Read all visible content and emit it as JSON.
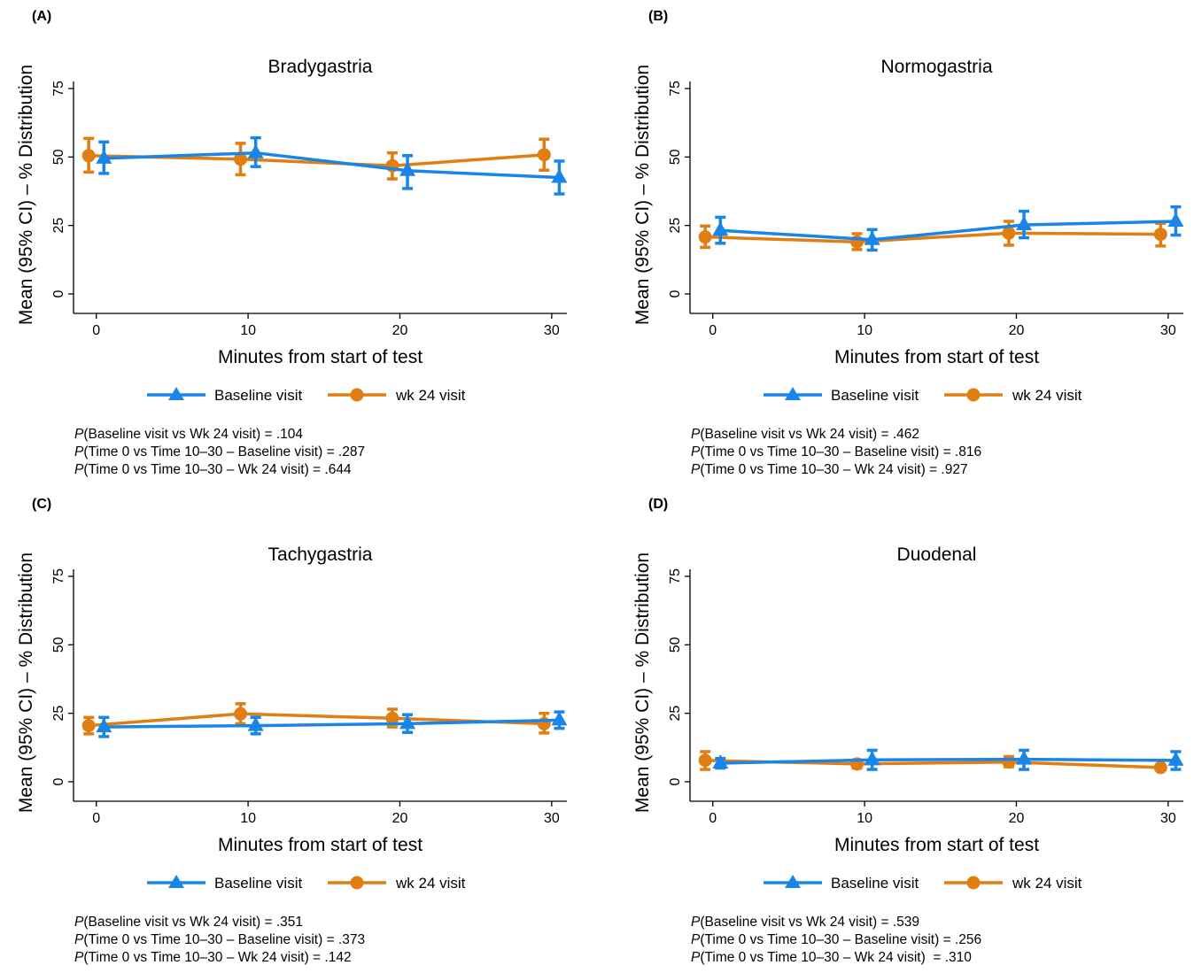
{
  "colors": {
    "baseline": "#1a85e8",
    "wk24": "#e07e12",
    "axis": "#000000"
  },
  "legend": {
    "baseline_label": "Baseline visit",
    "wk24_label": "wk 24 visit"
  },
  "chart_data": [
    {
      "type": "line",
      "panel_label": "(A)",
      "title": "Bradygastria",
      "xlabel": "Minutes from start of test",
      "ylabel": "Mean (95% CI) – % Distribution",
      "xlim": [
        -1.5,
        31
      ],
      "ylim": [
        0,
        75
      ],
      "xticks": [
        0,
        10,
        20,
        30
      ],
      "yticks": [
        0,
        25,
        50,
        75
      ],
      "series": [
        {
          "name": "Baseline visit",
          "marker": "triangle",
          "x": [
            0.5,
            10.5,
            20.5,
            30.5
          ],
          "y": [
            49.5,
            51.5,
            45,
            42.5
          ],
          "lo": [
            44,
            46.5,
            38.5,
            36.5
          ],
          "hi": [
            55.5,
            57,
            50.5,
            48.5
          ]
        },
        {
          "name": "wk 24 visit",
          "marker": "circle",
          "x": [
            -0.5,
            9.5,
            19.5,
            29.5
          ],
          "y": [
            50.5,
            49.2,
            46.8,
            50.8
          ],
          "lo": [
            44.5,
            43.5,
            42,
            45.2
          ],
          "hi": [
            56.8,
            55,
            51.5,
            56.5
          ]
        }
      ],
      "p_values": [
        {
          "prefix": "P",
          "text": "(Baseline visit vs Wk 24 visit) = .104"
        },
        {
          "prefix": "P",
          "text": "(Time 0 vs Time 10–30 – Baseline visit) = .287"
        },
        {
          "prefix": "P",
          "text": "(Time 0 vs Time 10–30 – Wk 24 visit) = .644"
        }
      ]
    },
    {
      "type": "line",
      "panel_label": "(B)",
      "title": "Normogastria",
      "xlabel": "Minutes from start of test",
      "ylabel": "Mean (95% CI) – % Distribution",
      "xlim": [
        -1.5,
        31
      ],
      "ylim": [
        0,
        75
      ],
      "xticks": [
        0,
        10,
        20,
        30
      ],
      "yticks": [
        0,
        25,
        50,
        75
      ],
      "series": [
        {
          "name": "Baseline visit",
          "marker": "triangle",
          "x": [
            0.5,
            10.5,
            20.5,
            30.5
          ],
          "y": [
            23.2,
            19.8,
            25.2,
            26.5
          ],
          "lo": [
            18.5,
            16,
            20.5,
            21.5
          ],
          "hi": [
            28,
            23.5,
            30.2,
            31.8
          ]
        },
        {
          "name": "wk 24 visit",
          "marker": "circle",
          "x": [
            -0.5,
            9.5,
            19.5,
            29.5
          ],
          "y": [
            20.8,
            19,
            22.2,
            21.8
          ],
          "lo": [
            17,
            16.2,
            17.8,
            17.5
          ],
          "hi": [
            24.8,
            22,
            26.5,
            25.8
          ]
        }
      ],
      "p_values": [
        {
          "prefix": "P",
          "text": "(Baseline visit vs Wk 24 visit) = .462"
        },
        {
          "prefix": "P",
          "text": "(Time 0 vs Time 10–30 – Baseline visit) = .816"
        },
        {
          "prefix": "P",
          "text": "(Time 0 vs Time 10–30 – Wk 24 visit) = .927"
        }
      ]
    },
    {
      "type": "line",
      "panel_label": "(C)",
      "title": "Tachygastria",
      "xlabel": "Minutes from start of test",
      "ylabel": "Mean (95% CI) – % Distribution",
      "xlim": [
        -1.5,
        31
      ],
      "ylim": [
        0,
        75
      ],
      "xticks": [
        0,
        10,
        20,
        30
      ],
      "yticks": [
        0,
        25,
        50,
        75
      ],
      "series": [
        {
          "name": "Baseline visit",
          "marker": "triangle",
          "x": [
            0.5,
            10.5,
            20.5,
            30.5
          ],
          "y": [
            20,
            20.5,
            21.2,
            22.5
          ],
          "lo": [
            16.5,
            17.5,
            18,
            19.5
          ],
          "hi": [
            23.5,
            23.5,
            24.5,
            25.5
          ]
        },
        {
          "name": "wk 24 visit",
          "marker": "circle",
          "x": [
            -0.5,
            9.5,
            19.5,
            29.5
          ],
          "y": [
            20.5,
            24.8,
            23.2,
            21.2
          ],
          "lo": [
            17.5,
            21.2,
            20,
            17.8
          ],
          "hi": [
            23.5,
            28.5,
            26.5,
            25
          ]
        }
      ],
      "p_values": [
        {
          "prefix": "P",
          "text": "(Baseline visit vs Wk 24 visit) = .351"
        },
        {
          "prefix": "P",
          "text": "(Time 0 vs Time 10–30 – Baseline visit) = .373"
        },
        {
          "prefix": "P",
          "text": "(Time 0 vs Time 10–30 – Wk 24 visit) = .142"
        }
      ]
    },
    {
      "type": "line",
      "panel_label": "(D)",
      "title": "Duodenal",
      "xlabel": "Minutes from start of test",
      "ylabel": "Mean (95% CI) – % Distribution",
      "xlim": [
        -1.5,
        31
      ],
      "ylim": [
        0,
        75
      ],
      "xticks": [
        0,
        10,
        20,
        30
      ],
      "yticks": [
        0,
        25,
        50,
        75
      ],
      "series": [
        {
          "name": "Baseline visit",
          "marker": "triangle",
          "x": [
            0.5,
            10.5,
            20.5,
            30.5
          ],
          "y": [
            6.8,
            8,
            8.2,
            7.8
          ],
          "lo": [
            5,
            4.5,
            4.5,
            4.5
          ],
          "hi": [
            8.5,
            11.5,
            11.5,
            11
          ]
        },
        {
          "name": "wk 24 visit",
          "marker": "circle",
          "x": [
            -0.5,
            9.5,
            19.5,
            29.5
          ],
          "y": [
            7.8,
            6.5,
            7.2,
            5.2
          ],
          "lo": [
            4.5,
            5,
            5.5,
            4.8
          ],
          "hi": [
            11,
            8,
            9.2,
            5.8
          ]
        }
      ],
      "p_values": [
        {
          "prefix": "P",
          "text": "(Baseline visit vs Wk 24 visit) = .539"
        },
        {
          "prefix": "P",
          "text": "(Time 0 vs Time 10–30 – Baseline visit) = .256"
        },
        {
          "prefix": "P",
          "text": "(Time 0 vs Time 10–30 – Wk 24 visit)  = .310"
        }
      ]
    }
  ]
}
